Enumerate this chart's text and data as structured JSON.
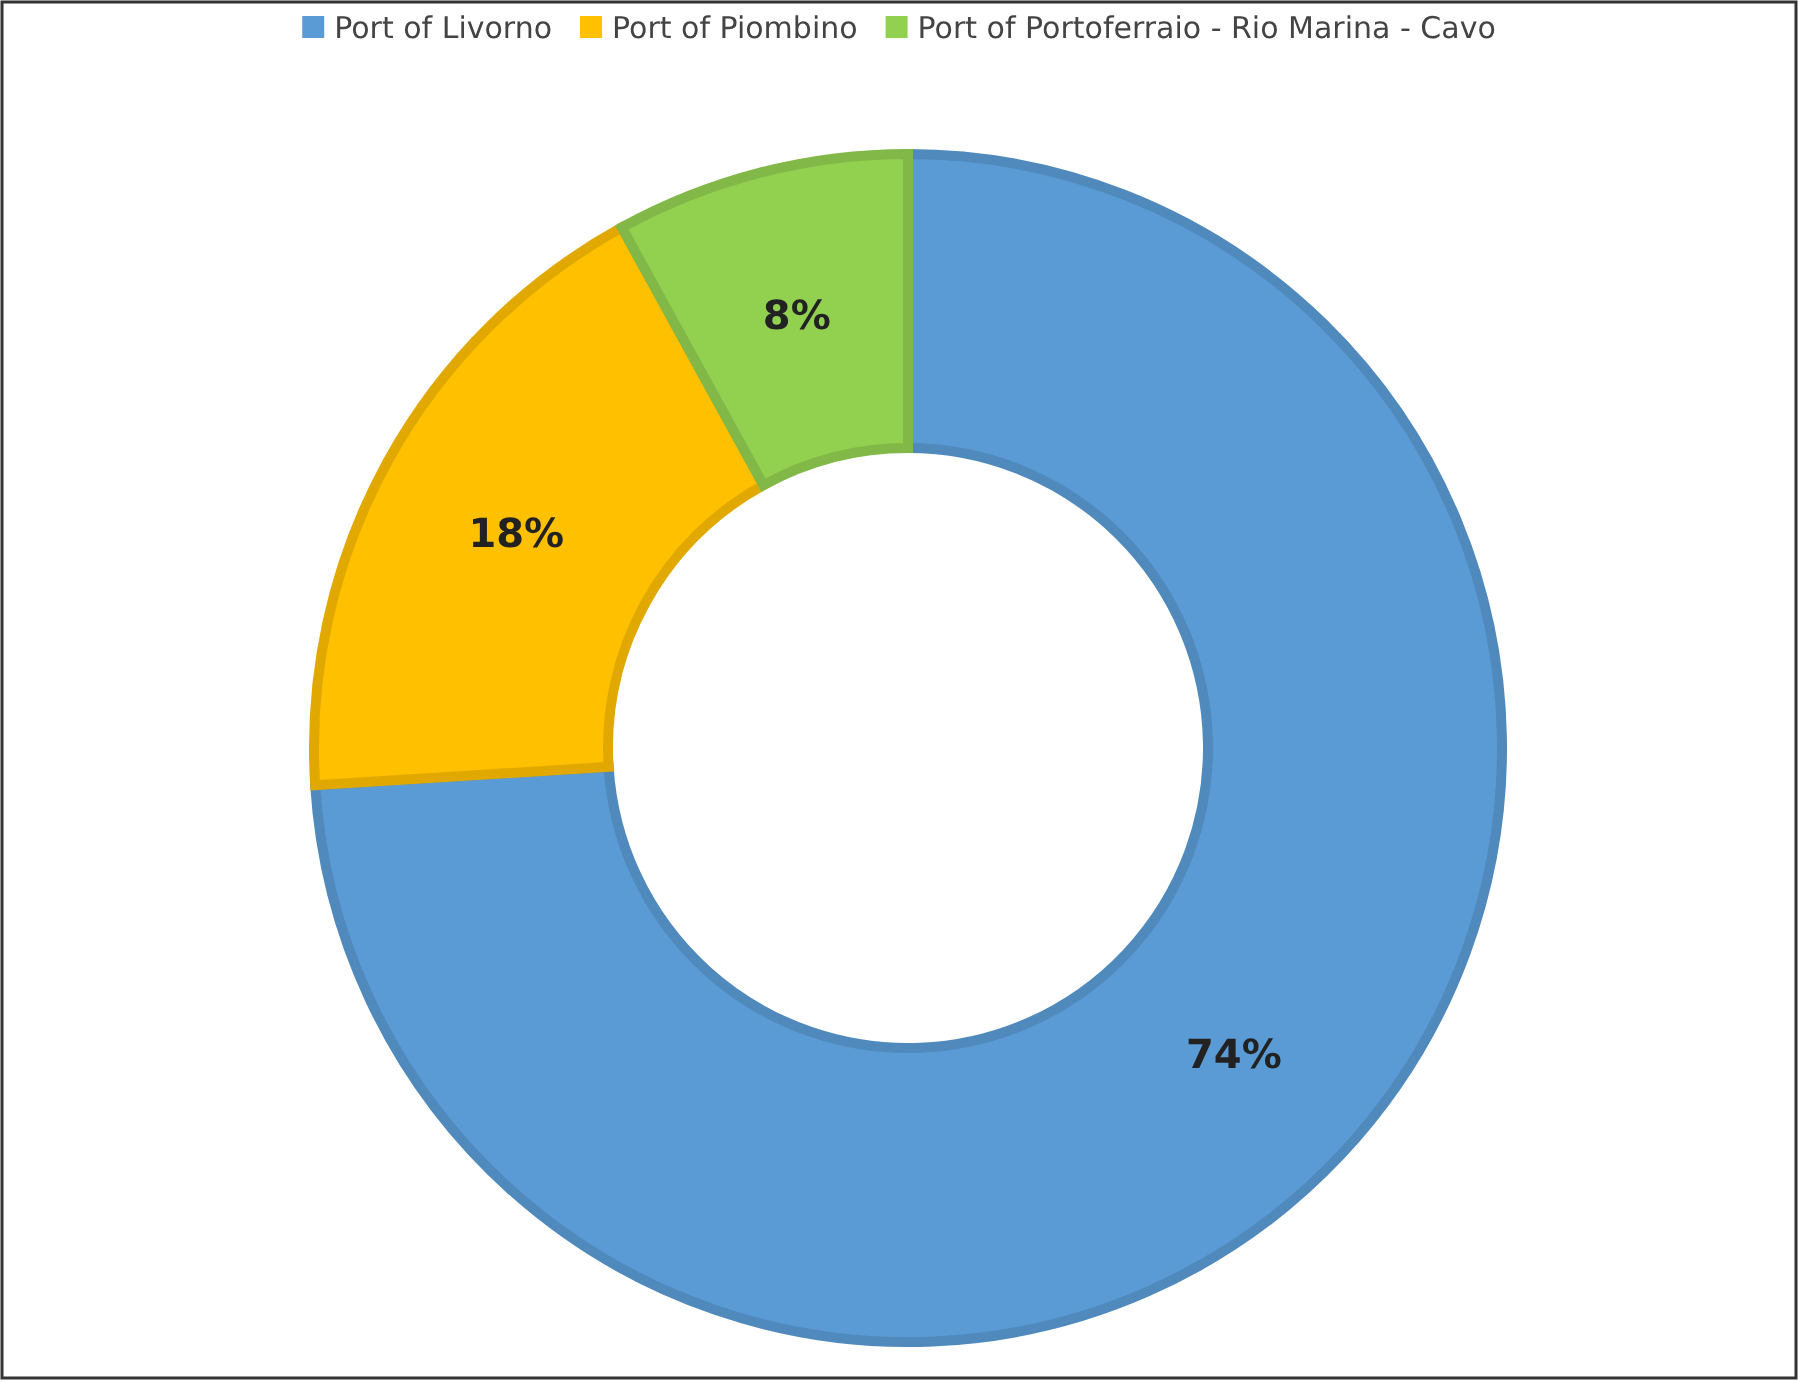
{
  "chart_data": {
    "type": "donut",
    "categories": [
      "Port of Livorno",
      "Port of Piombino",
      "Port of Portoferraio - Rio Marina - Cavo"
    ],
    "values": [
      74,
      18,
      8
    ],
    "colors": [
      "#5b9bd5",
      "#ffc000",
      "#92d050"
    ],
    "value_labels": [
      "74%",
      "18%",
      "8%"
    ],
    "legend": "top"
  }
}
